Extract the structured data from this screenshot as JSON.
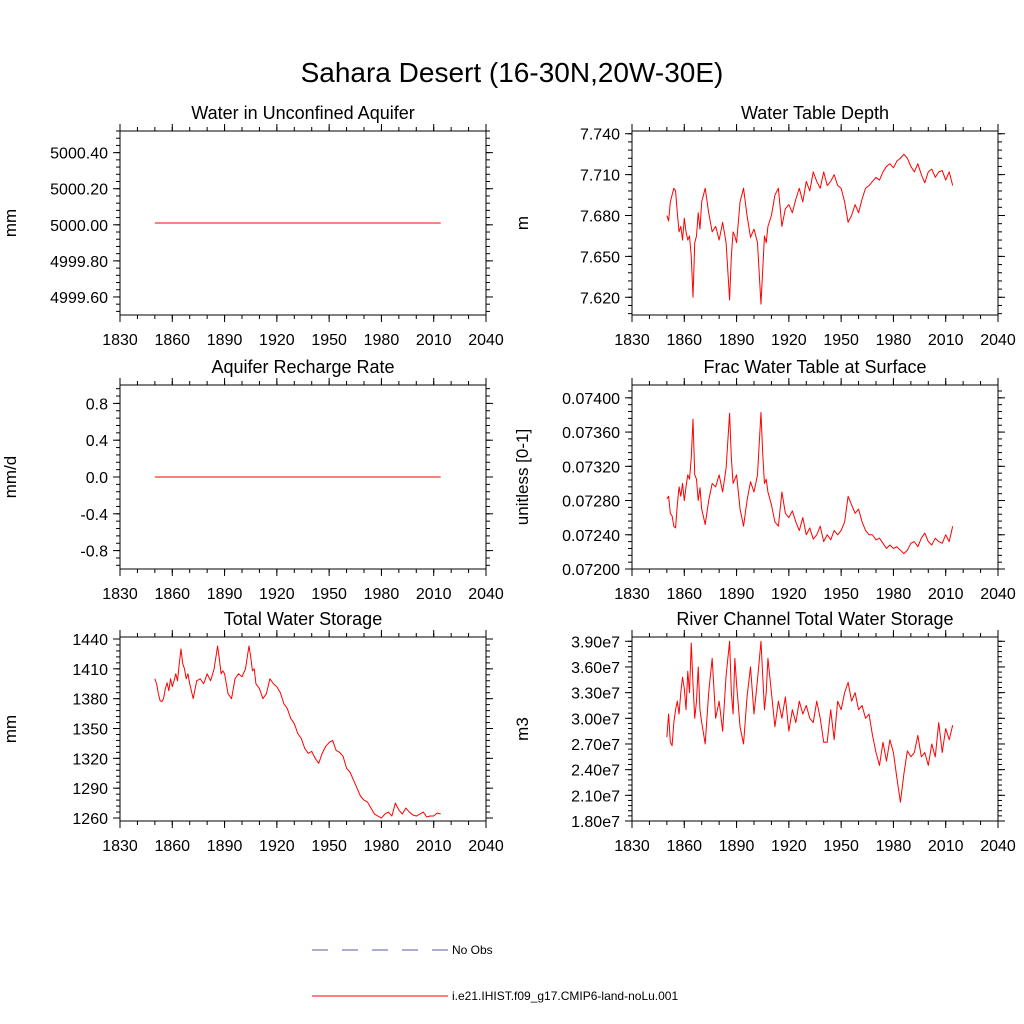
{
  "title": "Sahara Desert (16-30N,20W-30E)",
  "legend": {
    "entries": [
      {
        "label": "No Obs",
        "color": "#5a5aa8",
        "dash": true
      },
      {
        "label": "i.e21.IHIST.f09_g17.CMIP6-land-noLu.001",
        "color": "#ff0000",
        "dash": false
      }
    ]
  },
  "series_color": "#ff0000",
  "chart_data": [
    {
      "type": "line",
      "title": "Water in Unconfined Aquifer",
      "ylabel": "mm",
      "xlim": [
        1830,
        2040
      ],
      "ylim": [
        4999.5,
        5000.52
      ],
      "xticks": [
        1830,
        1860,
        1890,
        1920,
        1950,
        1980,
        2010,
        2040
      ],
      "xtick_labels": [
        "1830",
        "1860",
        "1890",
        "1920",
        "1950",
        "1980",
        "2010",
        "2040"
      ],
      "yticks": [
        4999.6,
        4999.8,
        5000.0,
        5000.2,
        5000.4
      ],
      "ytick_labels": [
        "4999.60",
        "4999.80",
        "5000.00",
        "5000.20",
        "5000.40"
      ],
      "x": [
        1850,
        2014
      ],
      "y": [
        5000.01,
        5000.01
      ]
    },
    {
      "type": "line",
      "title": "Water Table Depth",
      "ylabel": "m",
      "xlim": [
        1830,
        2040
      ],
      "ylim": [
        7.607,
        7.742
      ],
      "xticks": [
        1830,
        1860,
        1890,
        1920,
        1950,
        1980,
        2010,
        2040
      ],
      "xtick_labels": [
        "1830",
        "1860",
        "1890",
        "1920",
        "1950",
        "1980",
        "2010",
        "2040"
      ],
      "yticks": [
        7.62,
        7.65,
        7.68,
        7.71,
        7.74
      ],
      "ytick_labels": [
        "7.620",
        "7.650",
        "7.680",
        "7.710",
        "7.740"
      ],
      "x": [
        1850,
        1851,
        1852,
        1853,
        1854,
        1855,
        1856,
        1857,
        1858,
        1859,
        1860,
        1861,
        1862,
        1863,
        1864,
        1865,
        1866,
        1867,
        1868,
        1869,
        1870,
        1872,
        1874,
        1876,
        1878,
        1880,
        1882,
        1884,
        1886,
        1887,
        1888,
        1889,
        1890,
        1892,
        1894,
        1896,
        1898,
        1900,
        1902,
        1904,
        1905,
        1906,
        1907,
        1908,
        1910,
        1912,
        1914,
        1916,
        1918,
        1920,
        1922,
        1924,
        1926,
        1928,
        1930,
        1932,
        1934,
        1936,
        1938,
        1940,
        1942,
        1944,
        1946,
        1948,
        1950,
        1952,
        1954,
        1956,
        1958,
        1960,
        1962,
        1964,
        1966,
        1968,
        1970,
        1972,
        1974,
        1976,
        1978,
        1980,
        1982,
        1984,
        1986,
        1988,
        1990,
        1992,
        1994,
        1996,
        1998,
        2000,
        2002,
        2004,
        2006,
        2008,
        2010,
        2012,
        2014
      ],
      "y": [
        7.68,
        7.676,
        7.69,
        7.695,
        7.7,
        7.698,
        7.682,
        7.668,
        7.672,
        7.662,
        7.678,
        7.668,
        7.662,
        7.665,
        7.65,
        7.62,
        7.66,
        7.665,
        7.682,
        7.67,
        7.69,
        7.7,
        7.682,
        7.668,
        7.672,
        7.662,
        7.675,
        7.66,
        7.618,
        7.65,
        7.668,
        7.665,
        7.66,
        7.69,
        7.7,
        7.68,
        7.664,
        7.67,
        7.66,
        7.615,
        7.64,
        7.665,
        7.66,
        7.672,
        7.68,
        7.695,
        7.7,
        7.672,
        7.685,
        7.688,
        7.682,
        7.692,
        7.7,
        7.69,
        7.705,
        7.698,
        7.712,
        7.705,
        7.7,
        7.712,
        7.702,
        7.705,
        7.71,
        7.702,
        7.7,
        7.69,
        7.675,
        7.68,
        7.688,
        7.682,
        7.692,
        7.7,
        7.702,
        7.705,
        7.708,
        7.706,
        7.712,
        7.716,
        7.718,
        7.715,
        7.72,
        7.722,
        7.725,
        7.722,
        7.716,
        7.712,
        7.718,
        7.71,
        7.704,
        7.712,
        7.714,
        7.708,
        7.712,
        7.713,
        7.706,
        7.712,
        7.702
      ]
    },
    {
      "type": "line",
      "title": "Aquifer Recharge Rate",
      "ylabel": "mm/d",
      "xlim": [
        1830,
        2040
      ],
      "ylim": [
        -1.0,
        1.0
      ],
      "xticks": [
        1830,
        1860,
        1890,
        1920,
        1950,
        1980,
        2010,
        2040
      ],
      "xtick_labels": [
        "1830",
        "1860",
        "1890",
        "1920",
        "1950",
        "1980",
        "2010",
        "2040"
      ],
      "yticks": [
        -0.8,
        -0.4,
        0.0,
        0.4,
        0.8
      ],
      "ytick_labels": [
        "-0.8",
        "-0.4",
        "0.0",
        "0.4",
        "0.8"
      ],
      "x": [
        1850,
        2014
      ],
      "y": [
        0.0,
        0.0
      ]
    },
    {
      "type": "line",
      "title": "Frac Water Table at Surface",
      "ylabel": "unitless [0-1]",
      "xlim": [
        1830,
        2040
      ],
      "ylim": [
        0.072,
        0.07415
      ],
      "xticks": [
        1830,
        1860,
        1890,
        1920,
        1950,
        1980,
        2010,
        2040
      ],
      "xtick_labels": [
        "1830",
        "1860",
        "1890",
        "1920",
        "1950",
        "1980",
        "2010",
        "2040"
      ],
      "yticks": [
        0.072,
        0.0724,
        0.0728,
        0.0732,
        0.0736,
        0.074
      ],
      "ytick_labels": [
        "0.07200",
        "0.07240",
        "0.07280",
        "0.07320",
        "0.07360",
        "0.07400"
      ],
      "x": [
        1850,
        1851,
        1852,
        1853,
        1854,
        1855,
        1856,
        1857,
        1858,
        1859,
        1860,
        1861,
        1862,
        1863,
        1864,
        1865,
        1866,
        1867,
        1868,
        1869,
        1870,
        1872,
        1874,
        1876,
        1878,
        1880,
        1882,
        1884,
        1886,
        1887,
        1888,
        1889,
        1890,
        1892,
        1894,
        1896,
        1898,
        1900,
        1902,
        1904,
        1905,
        1906,
        1907,
        1908,
        1910,
        1912,
        1914,
        1916,
        1918,
        1920,
        1922,
        1924,
        1926,
        1928,
        1930,
        1932,
        1934,
        1936,
        1938,
        1940,
        1942,
        1944,
        1946,
        1948,
        1950,
        1952,
        1954,
        1956,
        1958,
        1960,
        1962,
        1964,
        1966,
        1968,
        1970,
        1972,
        1974,
        1976,
        1978,
        1980,
        1982,
        1984,
        1986,
        1988,
        1990,
        1992,
        1994,
        1996,
        1998,
        2000,
        2002,
        2004,
        2006,
        2008,
        2010,
        2012,
        2014
      ],
      "y": [
        0.07282,
        0.07285,
        0.07265,
        0.07262,
        0.0725,
        0.07248,
        0.07275,
        0.07296,
        0.07285,
        0.073,
        0.0728,
        0.07296,
        0.0731,
        0.07305,
        0.0733,
        0.07375,
        0.0731,
        0.07305,
        0.0728,
        0.07295,
        0.0727,
        0.07252,
        0.0728,
        0.073,
        0.07296,
        0.0731,
        0.0729,
        0.07318,
        0.07382,
        0.0733,
        0.073,
        0.07305,
        0.0731,
        0.0727,
        0.0725,
        0.0728,
        0.07302,
        0.0729,
        0.0731,
        0.07383,
        0.07335,
        0.073,
        0.07305,
        0.0729,
        0.07275,
        0.07255,
        0.0725,
        0.0729,
        0.07265,
        0.0726,
        0.07268,
        0.07255,
        0.07245,
        0.0726,
        0.0724,
        0.07248,
        0.07235,
        0.0724,
        0.0725,
        0.07232,
        0.0724,
        0.07234,
        0.07245,
        0.0724,
        0.07245,
        0.07255,
        0.07285,
        0.07275,
        0.07265,
        0.0727,
        0.07255,
        0.07245,
        0.0724,
        0.0724,
        0.07234,
        0.07236,
        0.0723,
        0.07224,
        0.07228,
        0.07224,
        0.07226,
        0.07222,
        0.07218,
        0.07222,
        0.0723,
        0.07232,
        0.07226,
        0.07236,
        0.07242,
        0.07232,
        0.07228,
        0.07236,
        0.07232,
        0.0723,
        0.0724,
        0.07232,
        0.0725
      ]
    },
    {
      "type": "line",
      "title": "Total Water Storage",
      "ylabel": "mm",
      "xlim": [
        1830,
        2040
      ],
      "ylim": [
        1257,
        1442
      ],
      "xticks": [
        1830,
        1860,
        1890,
        1920,
        1950,
        1980,
        2010,
        2040
      ],
      "xtick_labels": [
        "1830",
        "1860",
        "1890",
        "1920",
        "1950",
        "1980",
        "2010",
        "2040"
      ],
      "yticks": [
        1260,
        1290,
        1320,
        1350,
        1380,
        1410,
        1440
      ],
      "ytick_labels": [
        "1260",
        "1290",
        "1320",
        "1350",
        "1380",
        "1410",
        "1440"
      ],
      "x": [
        1850,
        1851,
        1852,
        1853,
        1854,
        1855,
        1856,
        1857,
        1858,
        1859,
        1860,
        1861,
        1862,
        1863,
        1864,
        1865,
        1866,
        1867,
        1868,
        1869,
        1870,
        1872,
        1874,
        1876,
        1878,
        1880,
        1882,
        1884,
        1886,
        1887,
        1888,
        1889,
        1890,
        1892,
        1894,
        1896,
        1898,
        1900,
        1902,
        1904,
        1905,
        1906,
        1907,
        1908,
        1910,
        1912,
        1914,
        1916,
        1918,
        1920,
        1922,
        1924,
        1926,
        1928,
        1930,
        1932,
        1934,
        1936,
        1938,
        1940,
        1942,
        1944,
        1946,
        1948,
        1950,
        1952,
        1954,
        1956,
        1958,
        1960,
        1962,
        1964,
        1966,
        1968,
        1970,
        1972,
        1974,
        1976,
        1978,
        1980,
        1982,
        1984,
        1986,
        1988,
        1990,
        1992,
        1994,
        1996,
        1998,
        2000,
        2002,
        2004,
        2006,
        2008,
        2010,
        2012,
        2014
      ],
      "y": [
        1400,
        1395,
        1385,
        1378,
        1377,
        1380,
        1390,
        1396,
        1388,
        1400,
        1392,
        1398,
        1405,
        1398,
        1415,
        1430,
        1415,
        1410,
        1400,
        1405,
        1395,
        1380,
        1398,
        1400,
        1395,
        1405,
        1398,
        1410,
        1433,
        1420,
        1405,
        1408,
        1405,
        1385,
        1380,
        1400,
        1405,
        1402,
        1410,
        1433,
        1422,
        1408,
        1410,
        1395,
        1390,
        1380,
        1385,
        1400,
        1395,
        1392,
        1386,
        1375,
        1370,
        1360,
        1355,
        1345,
        1340,
        1330,
        1325,
        1327,
        1320,
        1315,
        1325,
        1332,
        1336,
        1338,
        1328,
        1326,
        1322,
        1310,
        1306,
        1298,
        1290,
        1282,
        1278,
        1276,
        1270,
        1264,
        1262,
        1260,
        1264,
        1266,
        1262,
        1275,
        1268,
        1264,
        1270,
        1266,
        1263,
        1262,
        1264,
        1266,
        1261,
        1262,
        1262,
        1265,
        1264
      ]
    },
    {
      "type": "line",
      "title": "River Channel Total Water Storage",
      "ylabel": "m3",
      "xlim": [
        1830,
        2040
      ],
      "ylim": [
        18000000.0,
        39500000.0
      ],
      "xticks": [
        1830,
        1860,
        1890,
        1920,
        1950,
        1980,
        2010,
        2040
      ],
      "xtick_labels": [
        "1830",
        "1860",
        "1890",
        "1920",
        "1950",
        "1980",
        "2010",
        "2040"
      ],
      "yticks": [
        18000000.0,
        21000000.0,
        24000000.0,
        27000000.0,
        30000000.0,
        33000000.0,
        36000000.0,
        39000000.0
      ],
      "ytick_labels": [
        "1.80e7",
        "2.10e7",
        "2.40e7",
        "2.70e7",
        "3.00e7",
        "3.30e7",
        "3.60e7",
        "3.90e7"
      ],
      "x": [
        1850,
        1851,
        1852,
        1853,
        1854,
        1855,
        1856,
        1857,
        1858,
        1859,
        1860,
        1861,
        1862,
        1863,
        1864,
        1865,
        1866,
        1867,
        1868,
        1869,
        1870,
        1872,
        1874,
        1876,
        1878,
        1880,
        1882,
        1884,
        1886,
        1887,
        1888,
        1889,
        1890,
        1892,
        1894,
        1896,
        1898,
        1900,
        1902,
        1904,
        1905,
        1906,
        1907,
        1908,
        1910,
        1912,
        1914,
        1916,
        1918,
        1920,
        1922,
        1924,
        1926,
        1928,
        1930,
        1932,
        1934,
        1936,
        1938,
        1940,
        1942,
        1944,
        1946,
        1948,
        1950,
        1952,
        1954,
        1956,
        1958,
        1960,
        1962,
        1964,
        1966,
        1968,
        1970,
        1972,
        1974,
        1976,
        1978,
        1980,
        1982,
        1984,
        1986,
        1988,
        1990,
        1992,
        1994,
        1996,
        1998,
        2000,
        2002,
        2004,
        2006,
        2008,
        2010,
        2012,
        2014
      ],
      "y": [
        27800000.0,
        30500000.0,
        27200000.0,
        26800000.0,
        29500000.0,
        31000000.0,
        32000000.0,
        30500000.0,
        33000000.0,
        34800000.0,
        33500000.0,
        31000000.0,
        35500000.0,
        33000000.0,
        38800000.0,
        34000000.0,
        30000000.0,
        32000000.0,
        36000000.0,
        31000000.0,
        29500000.0,
        27000000.0,
        33000000.0,
        37000000.0,
        30000000.0,
        32000000.0,
        28500000.0,
        35000000.0,
        39000000.0,
        33000000.0,
        30500000.0,
        37000000.0,
        34000000.0,
        29000000.0,
        27000000.0,
        32500000.0,
        36000000.0,
        30500000.0,
        34500000.0,
        39000000.0,
        35000000.0,
        31000000.0,
        33000000.0,
        37000000.0,
        33000000.0,
        29000000.0,
        32000000.0,
        30000000.0,
        32500000.0,
        28500000.0,
        31000000.0,
        29500000.0,
        32000000.0,
        30500000.0,
        31500000.0,
        30000000.0,
        29500000.0,
        32000000.0,
        30000000.0,
        27200000.0,
        27200000.0,
        31000000.0,
        27500000.0,
        32000000.0,
        31000000.0,
        33000000.0,
        34200000.0,
        32000000.0,
        33000000.0,
        31000000.0,
        31500000.0,
        30000000.0,
        30500000.0,
        28000000.0,
        26000000.0,
        24500000.0,
        27200000.0,
        25000000.0,
        27500000.0,
        26000000.0,
        23000000.0,
        20200000.0,
        23500000.0,
        26200000.0,
        25500000.0,
        26000000.0,
        28000000.0,
        25500000.0,
        26000000.0,
        24500000.0,
        27000000.0,
        25500000.0,
        29500000.0,
        26000000.0,
        28800000.0,
        27500000.0,
        29200000.0
      ]
    }
  ]
}
